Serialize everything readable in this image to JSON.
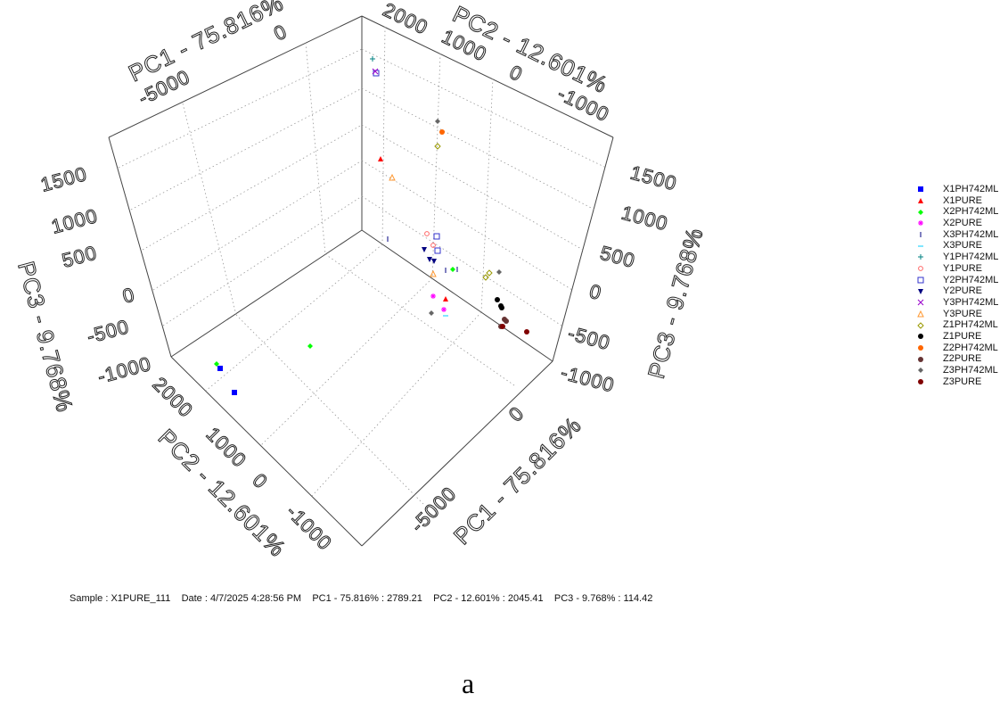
{
  "chart_data": {
    "type": "scatter",
    "dimensions": 3,
    "axes": {
      "x": {
        "label": "PC1 - 75.816%",
        "ticks": [
          "-5000",
          "0"
        ]
      },
      "y": {
        "label": "PC2 - 12.601%",
        "ticks": [
          "2000",
          "1000",
          "0",
          "-1000"
        ]
      },
      "z": {
        "label": "PC3 - 9.768%",
        "ticks": [
          "-1000",
          "-500",
          "0",
          "500",
          "1000",
          "1500"
        ]
      }
    },
    "grid": true,
    "legend_position": "right",
    "series": [
      {
        "name": "X1PH742ML",
        "color": "#0000ff",
        "marker": "square"
      },
      {
        "name": "X1PURE",
        "color": "#ff0000",
        "marker": "triangle"
      },
      {
        "name": "X2PH742ML",
        "color": "#00ff00",
        "marker": "diamond"
      },
      {
        "name": "X2PURE",
        "color": "#ff00ff",
        "marker": "star"
      },
      {
        "name": "X3PH742ML",
        "color": "#000080",
        "marker": "vline"
      },
      {
        "name": "X3PURE",
        "color": "#00ccff",
        "marker": "hline"
      },
      {
        "name": "Y1PH742ML",
        "color": "#008080",
        "marker": "plus"
      },
      {
        "name": "Y1PURE",
        "color": "#ff6666",
        "marker": "circle-open"
      },
      {
        "name": "Y2PH742ML",
        "color": "#3333cc",
        "marker": "square-open"
      },
      {
        "name": "Y2PURE",
        "color": "#000080",
        "marker": "triangle-down"
      },
      {
        "name": "Y3PH742ML",
        "color": "#9900cc",
        "marker": "x"
      },
      {
        "name": "Y3PURE",
        "color": "#ff9933",
        "marker": "triangle-open"
      },
      {
        "name": "Z1PH742ML",
        "color": "#999900",
        "marker": "diamond-open"
      },
      {
        "name": "Z1PURE",
        "color": "#000000",
        "marker": "circle"
      },
      {
        "name": "Z2PH742ML",
        "color": "#ff6600",
        "marker": "circle"
      },
      {
        "name": "Z2PURE",
        "color": "#663333",
        "marker": "circle"
      },
      {
        "name": "Z3PH742ML",
        "color": "#666666",
        "marker": "diamond"
      },
      {
        "name": "Z3PURE",
        "color": "#800000",
        "marker": "circle"
      }
    ]
  },
  "status": {
    "sample": "Sample : X1PURE_111",
    "date": "Date : 4/7/2025 4:28:56 PM",
    "pc1": "PC1 - 75.816% : 2789.21",
    "pc2": "PC2 - 12.601% : 2045.41",
    "pc3": "PC3 - 9.768% : 114.42"
  },
  "figure_label": "a"
}
